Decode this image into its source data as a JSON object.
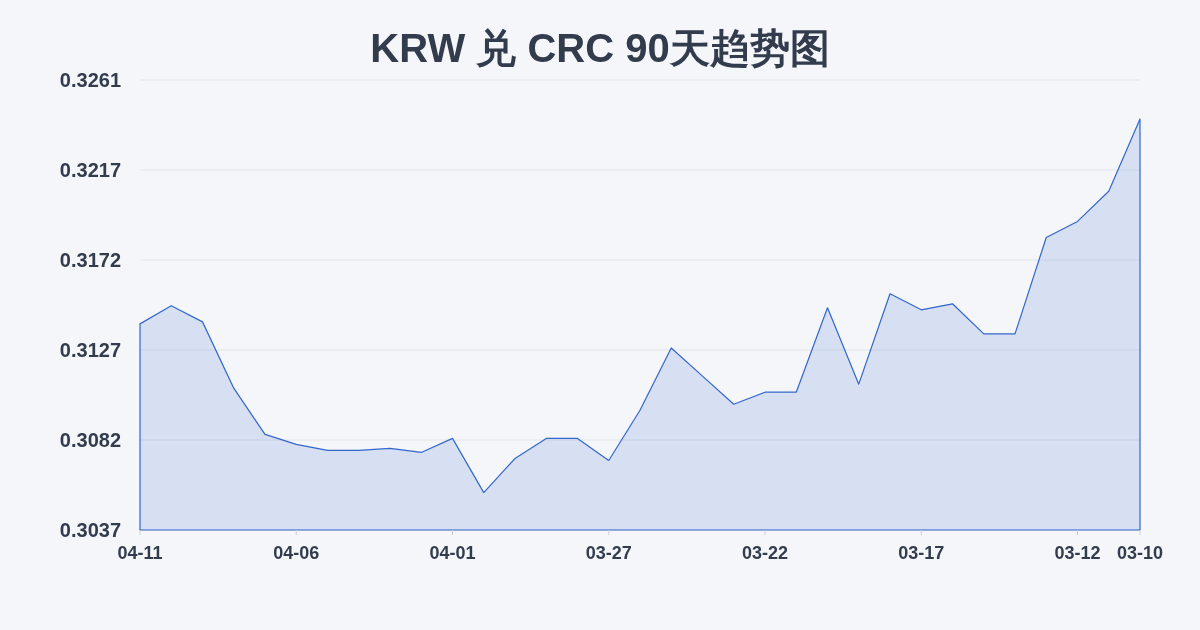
{
  "chart_data": {
    "type": "area",
    "title": "KRW 兑 CRC 90天趋势图",
    "categories": [
      "04-11",
      null,
      null,
      null,
      null,
      "04-06",
      null,
      null,
      null,
      null,
      "04-01",
      null,
      null,
      null,
      null,
      "03-27",
      null,
      null,
      null,
      null,
      "03-22",
      null,
      null,
      null,
      null,
      "03-17",
      null,
      null,
      null,
      null,
      "03-12",
      null,
      "03-10"
    ],
    "series": [
      {
        "color": "#3366cc",
        "values": [
          0.314,
          0.3149,
          0.3141,
          0.3108,
          0.3085,
          0.308,
          0.3077,
          0.3077,
          0.3078,
          0.3076,
          0.3083,
          0.3056,
          0.3073,
          0.3083,
          0.3083,
          0.3072,
          0.3097,
          0.3128,
          0.3114,
          0.31,
          0.3106,
          0.3106,
          0.3148,
          0.311,
          0.3155,
          0.3147,
          0.315,
          0.3135,
          0.3135,
          0.3183,
          0.3191,
          0.3206,
          0.3242
        ]
      }
    ],
    "ylim": [
      0.30374,
      0.32614
    ],
    "yticks": [
      {
        "value": 0.30374,
        "label": "0.3037"
      },
      {
        "value": 0.30822,
        "label": "0.3082"
      },
      {
        "value": 0.3127,
        "label": "0.3127"
      },
      {
        "value": 0.31718,
        "label": "0.3172"
      },
      {
        "value": 0.32166,
        "label": "0.3217"
      },
      {
        "value": 0.32614,
        "label": "0.3261"
      }
    ],
    "grid": "y"
  }
}
